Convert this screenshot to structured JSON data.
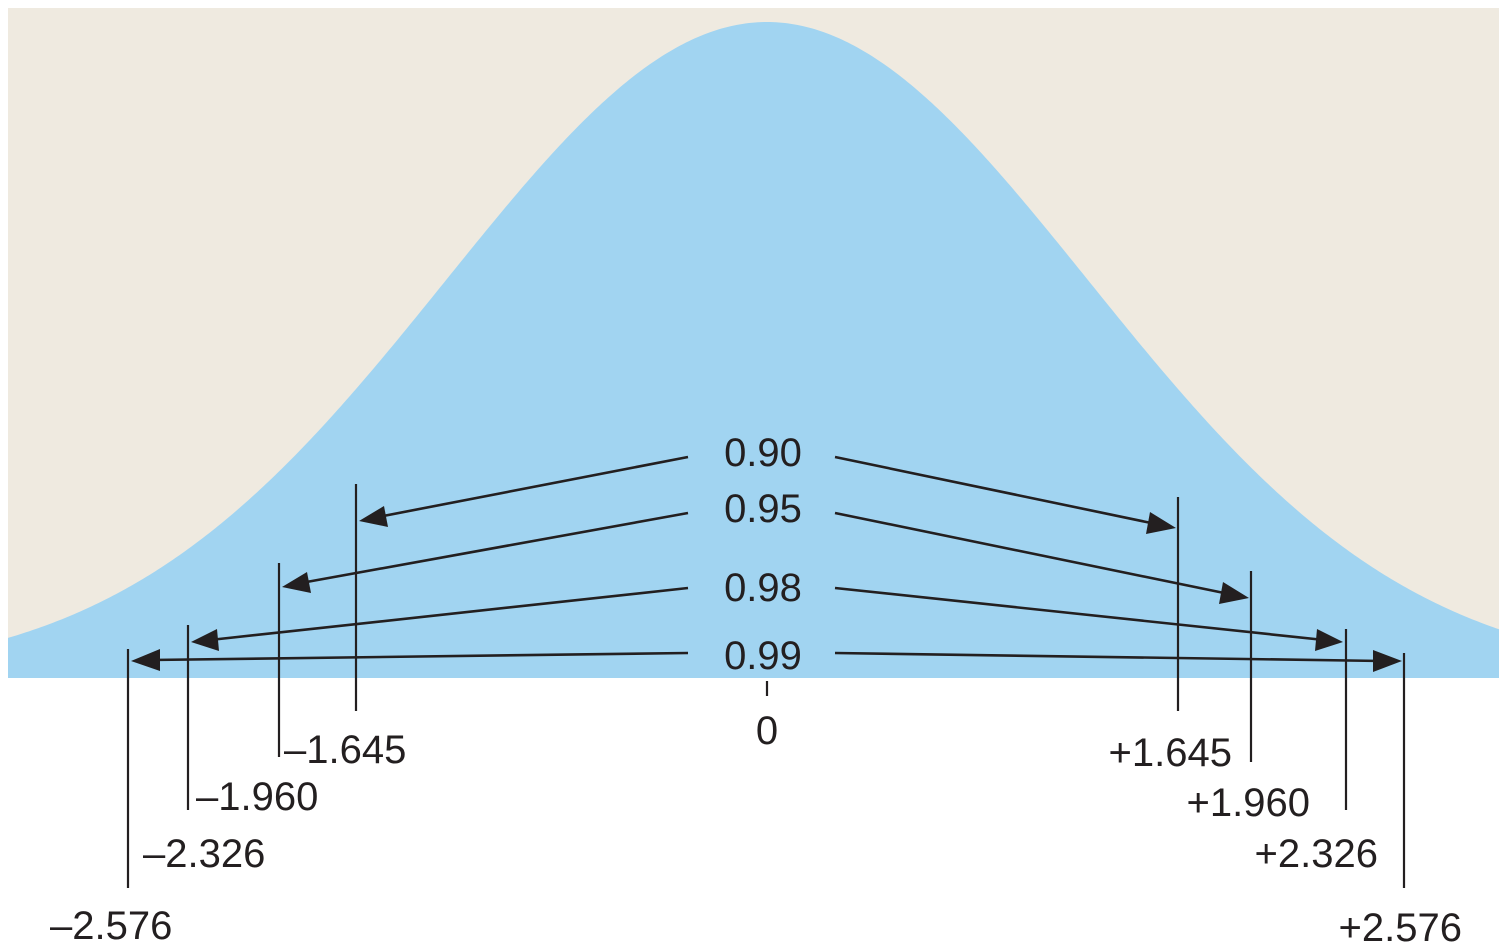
{
  "diagram": {
    "type": "normal-distribution-confidence-intervals",
    "colors": {
      "background": "#efeae0",
      "curve_fill": "#a1d4f1",
      "ink": "#231f20"
    },
    "center_label": "0",
    "intervals": [
      {
        "confidence": "0.90",
        "z": 1.645,
        "left_label": "–1.645",
        "right_label": "+1.645"
      },
      {
        "confidence": "0.95",
        "z": 1.96,
        "left_label": "–1.960",
        "right_label": "+1.960"
      },
      {
        "confidence": "0.98",
        "z": 2.326,
        "left_label": "–2.326",
        "right_label": "+2.326"
      },
      {
        "confidence": "0.99",
        "z": 2.576,
        "left_label": "–2.576",
        "right_label": "+2.576"
      }
    ]
  }
}
